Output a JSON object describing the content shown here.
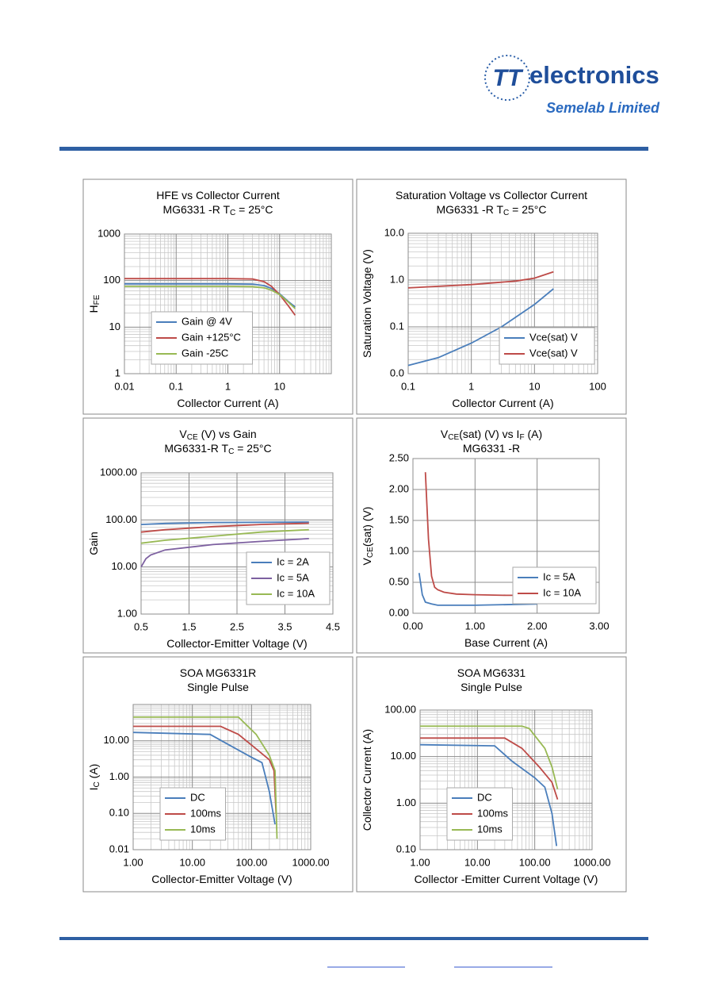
{
  "header": {
    "logo_mark": "TT",
    "logo_text": "electronics",
    "company": "Semelab Limited"
  },
  "chart_data": [
    {
      "type": "line",
      "title": [
        [
          "HFE   vs   Collector Current"
        ],
        [
          "MG6331 -R   T",
          "C",
          " = 25°C"
        ]
      ],
      "xlabel": [
        "Collector Current (A)"
      ],
      "ylabel": [
        "H",
        "FE"
      ],
      "xscale": "log",
      "yscale": "log",
      "minor_grid": true,
      "grid": true,
      "legend": "lower-left",
      "xlim": [
        0.01,
        100
      ],
      "xticks": [
        0.01,
        0.1,
        1,
        10
      ],
      "ylim": [
        1,
        1000
      ],
      "yticks": [
        1,
        10,
        100,
        1000
      ],
      "series": [
        {
          "name": "Gain @ 4V",
          "color": "#4a7ebb",
          "x": [
            0.01,
            0.1,
            1,
            3,
            5,
            7,
            10,
            15,
            20
          ],
          "values": [
            85,
            85,
            85,
            84,
            78,
            68,
            52,
            35,
            27
          ]
        },
        {
          "name": "Gain +125°C",
          "color": "#be4b48",
          "x": [
            0.01,
            0.1,
            1,
            3,
            5,
            7,
            10,
            15,
            20
          ],
          "values": [
            110,
            110,
            110,
            108,
            95,
            75,
            50,
            28,
            18
          ]
        },
        {
          "name": "Gain -25C",
          "color": "#98b954",
          "x": [
            0.01,
            0.1,
            1,
            3,
            5,
            7,
            10,
            15,
            20
          ],
          "values": [
            75,
            75,
            75,
            74,
            70,
            62,
            50,
            34,
            25
          ]
        }
      ]
    },
    {
      "type": "line",
      "title": [
        [
          "Saturation Voltage vs Collector Current"
        ],
        [
          "MG6331 -R  T",
          "C",
          " = 25°C"
        ]
      ],
      "xlabel": [
        "Collector Current (A)"
      ],
      "ylabel": [
        "Saturation Voltage (V)"
      ],
      "xscale": "log",
      "yscale": "log",
      "minor_grid": true,
      "grid": true,
      "legend": "lower-right",
      "xlim": [
        0.1,
        100
      ],
      "xticks": [
        0.1,
        1,
        10,
        100
      ],
      "ylim": [
        0.01,
        10
      ],
      "yticks": [
        {
          "value": 0.01,
          "label": "0.0"
        },
        0.1,
        {
          "value": 1,
          "label": "1.0"
        },
        {
          "value": 10,
          "label": "10.0"
        }
      ],
      "series": [
        {
          "name": "Vce(sat) V",
          "color": "#4a7ebb",
          "x": [
            0.1,
            0.3,
            1,
            3,
            10,
            20
          ],
          "values": [
            0.015,
            0.022,
            0.045,
            0.1,
            0.3,
            0.65
          ]
        },
        {
          "name": "Vce(sat) V",
          "color": "#be4b48",
          "x": [
            0.1,
            1,
            5,
            10,
            20
          ],
          "values": [
            0.68,
            0.8,
            0.95,
            1.1,
            1.5
          ]
        }
      ]
    },
    {
      "type": "line",
      "title": [
        [
          "V",
          "CE",
          " (V)  vs  Gain"
        ],
        [
          "MG6331-R T",
          "C",
          " = 25°C"
        ]
      ],
      "xlabel": [
        "Collector-Emitter Voltage (V)"
      ],
      "ylabel": [
        "Gain"
      ],
      "xscale": "linear",
      "yscale": "log",
      "minor_grid": true,
      "grid": true,
      "legend": "lower-right",
      "xlim": [
        0.5,
        4.5
      ],
      "xticks": [
        0.5,
        1.5,
        2.5,
        3.5,
        4.5
      ],
      "ylim": [
        1,
        1000
      ],
      "yticks": [
        {
          "value": 1,
          "label": "1.00"
        },
        {
          "value": 10,
          "label": "10.00"
        },
        {
          "value": 100,
          "label": "100.00"
        },
        {
          "value": 1000,
          "label": "1000.00"
        }
      ],
      "series": [
        {
          "name": "Ic = 2A",
          "color": "#4a7ebb",
          "x": [
            0.5,
            1,
            2,
            3,
            4
          ],
          "values": [
            80,
            84,
            88,
            89,
            90
          ]
        },
        {
          "color": "#be4b48",
          "x": [
            0.5,
            1,
            2,
            3,
            4
          ],
          "values": [
            55,
            62,
            72,
            80,
            85
          ]
        },
        {
          "name": "Ic = 5A",
          "color": "#7d60a0",
          "x": [
            0.5,
            0.6,
            0.7,
            1,
            2,
            3,
            4
          ],
          "values": [
            10,
            15,
            18,
            23,
            30,
            35,
            40
          ]
        },
        {
          "name": "Ic = 10A",
          "color": "#98b954",
          "x": [
            0.5,
            1,
            2,
            3,
            4
          ],
          "values": [
            32,
            37,
            45,
            55,
            62
          ]
        }
      ]
    },
    {
      "type": "line",
      "title": [
        [
          "V",
          "CE",
          "(sat) (V) vs   I",
          "F",
          " (A)"
        ],
        [
          "MG6331 -R"
        ]
      ],
      "xlabel": [
        "Base Current (A)"
      ],
      "ylabel": [
        "V",
        "CE",
        "(sat) (V)"
      ],
      "xscale": "linear",
      "yscale": "linear",
      "minor_grid": false,
      "grid": true,
      "legend": "lower-right",
      "xlim": [
        0,
        3
      ],
      "xticks": [
        {
          "value": 0,
          "label": "0.00"
        },
        {
          "value": 1,
          "label": "1.00"
        },
        {
          "value": 2,
          "label": "2.00"
        },
        {
          "value": 3,
          "label": "3.00"
        }
      ],
      "ylim": [
        0,
        2.5
      ],
      "yticks": [
        {
          "value": 0,
          "label": "0.00"
        },
        {
          "value": 0.5,
          "label": "0.50"
        },
        {
          "value": 1,
          "label": "1.00"
        },
        {
          "value": 1.5,
          "label": "1.50"
        },
        {
          "value": 2,
          "label": "2.00"
        },
        {
          "value": 2.5,
          "label": "2.50"
        }
      ],
      "series": [
        {
          "name": "Ic = 5A",
          "color": "#4a7ebb",
          "x": [
            0.1,
            0.15,
            0.2,
            0.3,
            0.4,
            0.5,
            1,
            2
          ],
          "values": [
            0.65,
            0.3,
            0.18,
            0.15,
            0.13,
            0.13,
            0.13,
            0.15
          ]
        },
        {
          "name": "Ic = 10A",
          "color": "#be4b48",
          "x": [
            0.2,
            0.25,
            0.3,
            0.35,
            0.4,
            0.5,
            0.7,
            1,
            1.5,
            2
          ],
          "values": [
            2.28,
            1.2,
            0.6,
            0.42,
            0.38,
            0.34,
            0.31,
            0.3,
            0.29,
            0.29
          ]
        }
      ]
    },
    {
      "type": "line",
      "title": [
        [
          "SOA MG6331R"
        ],
        [
          "Single Pulse"
        ]
      ],
      "xlabel": [
        "Collector-Emitter Voltage  (V)"
      ],
      "ylabel": [
        "I",
        "C",
        " (A)"
      ],
      "xscale": "log",
      "yscale": "log",
      "minor_grid": true,
      "grid": true,
      "legend": "lower-left",
      "xlim": [
        1,
        1000
      ],
      "xticks": [
        {
          "value": 1,
          "label": "1.00"
        },
        {
          "value": 10,
          "label": "10.00"
        },
        {
          "value": 100,
          "label": "100.00"
        },
        {
          "value": 1000,
          "label": "1000.00"
        }
      ],
      "ylim": [
        0.01,
        100
      ],
      "yticks": [
        0.01,
        {
          "value": 0.1,
          "label": "0.10"
        },
        {
          "value": 1,
          "label": "1.00"
        },
        {
          "value": 10,
          "label": "10.00"
        }
      ],
      "series": [
        {
          "name": "DC",
          "color": "#4a7ebb",
          "x": [
            1,
            20,
            40,
            100,
            150,
            200,
            250
          ],
          "values": [
            17,
            15,
            8,
            3.5,
            2.5,
            0.4,
            0.05
          ]
        },
        {
          "name": "100ms",
          "color": "#be4b48",
          "x": [
            1,
            30,
            60,
            120,
            200,
            240,
            260
          ],
          "values": [
            25,
            25,
            15,
            6,
            3,
            1.5,
            0.1
          ]
        },
        {
          "name": "10ms",
          "color": "#98b954",
          "x": [
            1,
            60,
            120,
            200,
            250,
            270
          ],
          "values": [
            45,
            45,
            15,
            4,
            1.5,
            0.02
          ]
        }
      ]
    },
    {
      "type": "line",
      "title": [
        [
          "SOA MG6331"
        ],
        [
          "Single Pulse"
        ]
      ],
      "xlabel": [
        "Collector -Emitter Current Voltage  (V)"
      ],
      "ylabel": [
        "Collector Current  (A)"
      ],
      "xscale": "log",
      "yscale": "log",
      "minor_grid": true,
      "grid": true,
      "legend": "lower-left",
      "xlim": [
        1,
        1000
      ],
      "xticks": [
        {
          "value": 1,
          "label": "1.00"
        },
        {
          "value": 10,
          "label": "10.00"
        },
        {
          "value": 100,
          "label": "100.00"
        },
        {
          "value": 1000,
          "label": "1000.00"
        }
      ],
      "ylim": [
        0.1,
        100
      ],
      "yticks": [
        {
          "value": 0.1,
          "label": "0.10"
        },
        {
          "value": 1,
          "label": "1.00"
        },
        {
          "value": 10,
          "label": "10.00"
        },
        {
          "value": 100,
          "label": "100.00"
        }
      ],
      "series": [
        {
          "name": "DC",
          "color": "#4a7ebb",
          "x": [
            1,
            20,
            40,
            100,
            150,
            200,
            240
          ],
          "values": [
            18,
            17,
            8,
            3.5,
            2.2,
            0.6,
            0.12
          ]
        },
        {
          "name": "100ms",
          "color": "#be4b48",
          "x": [
            1,
            30,
            60,
            120,
            200,
            250
          ],
          "values": [
            25,
            25,
            15,
            6,
            2.8,
            1.2
          ]
        },
        {
          "name": "10ms",
          "color": "#98b954",
          "x": [
            1,
            60,
            80,
            150,
            200,
            250
          ],
          "values": [
            45,
            45,
            40,
            15,
            6,
            2
          ]
        }
      ]
    }
  ]
}
